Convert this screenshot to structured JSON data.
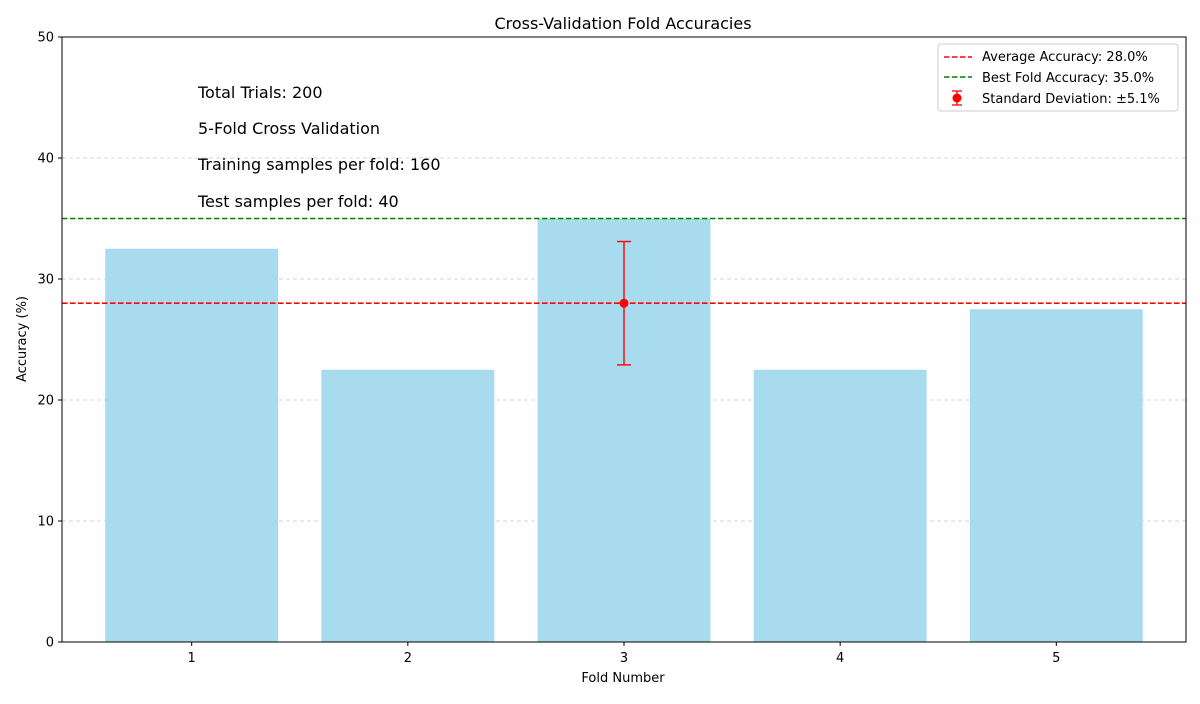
{
  "chart_data": {
    "type": "bar",
    "title": "Cross-Validation Fold Accuracies",
    "xlabel": "Fold Number",
    "ylabel": "Accuracy (%)",
    "categories": [
      "1",
      "2",
      "3",
      "4",
      "5"
    ],
    "values": [
      32.5,
      22.5,
      35.0,
      22.5,
      27.5
    ],
    "bar_color": "#a8dbee",
    "ylim": [
      0,
      50
    ],
    "yticks": [
      "0",
      "10",
      "20",
      "30",
      "40",
      "50"
    ],
    "grid": "y-dashed",
    "reference_lines": [
      {
        "label": "Average Accuracy: 28.0%",
        "value": 28.0,
        "color": "#ff0000"
      },
      {
        "label": "Best Fold Accuracy: 35.0%",
        "value": 35.0,
        "color": "#008000"
      }
    ],
    "error_bar": {
      "label": "Standard Deviation: ±5.1%",
      "x": "3",
      "y": 28.0,
      "err": 5.1,
      "color": "#ff0000"
    },
    "annotations": [
      "Total Trials: 200",
      "5-Fold Cross Validation",
      "Training samples per fold: 160",
      "Test samples per fold: 40"
    ],
    "legend_position": "top-right"
  }
}
